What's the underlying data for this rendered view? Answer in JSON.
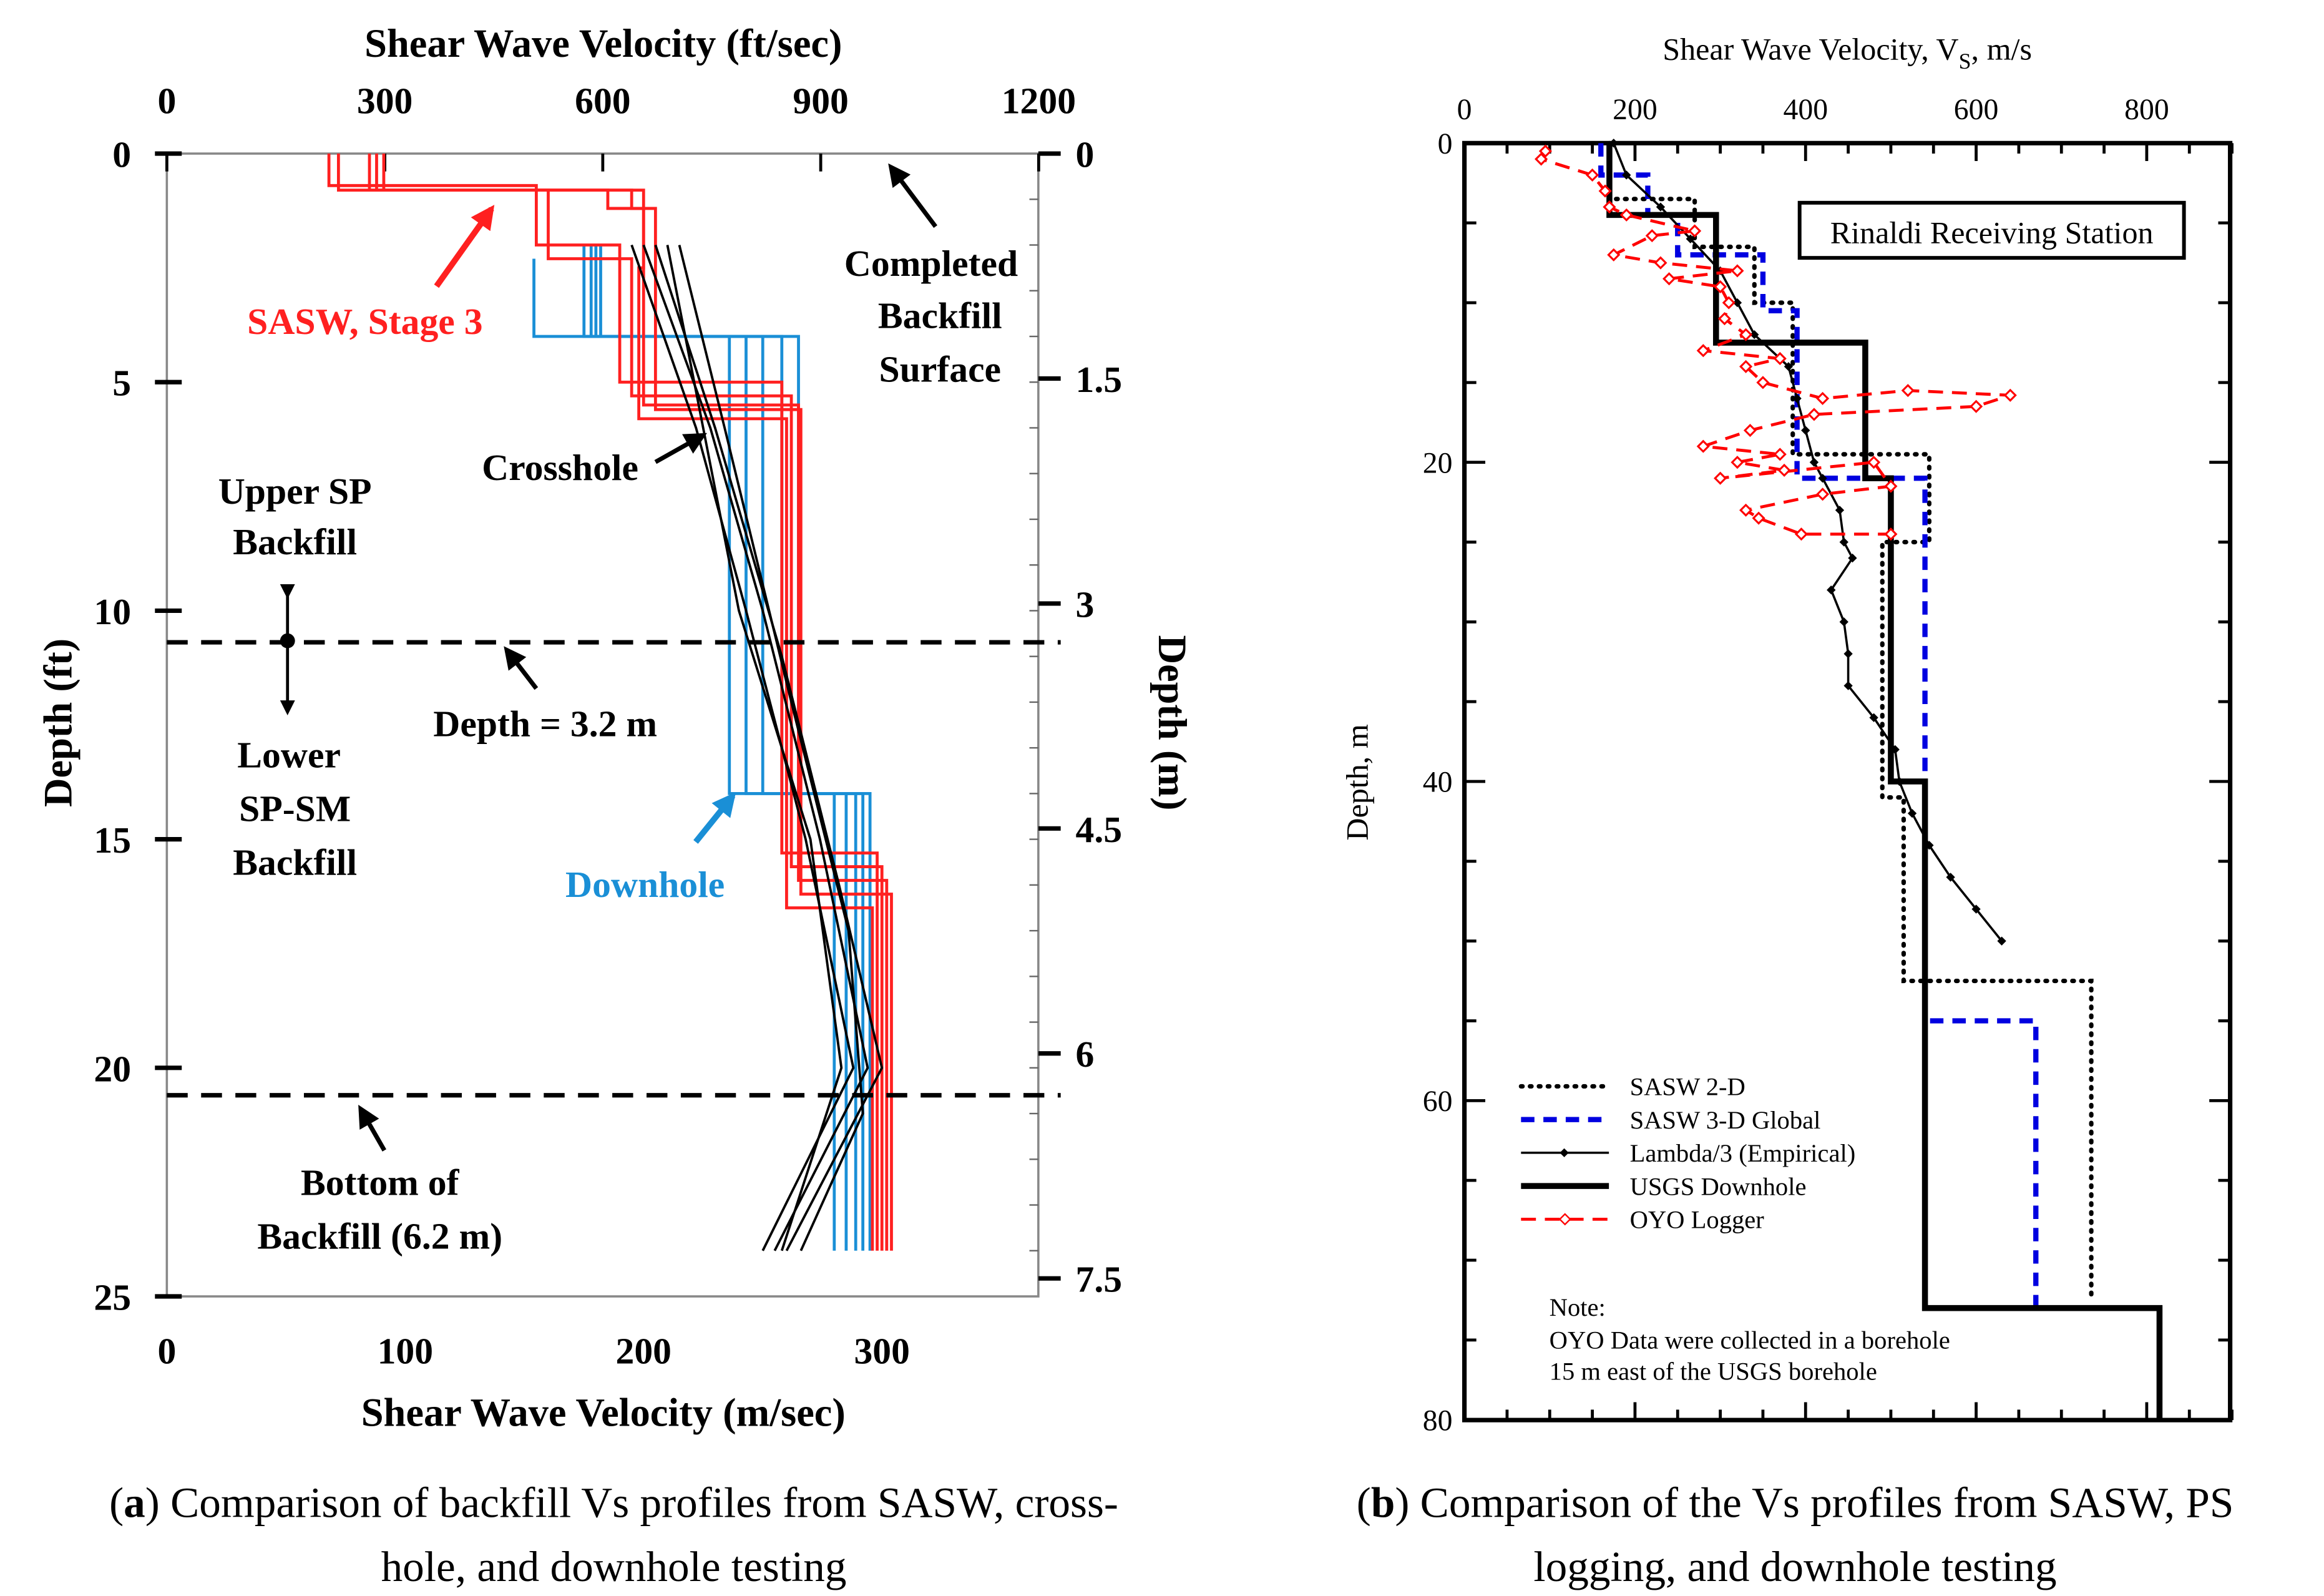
{
  "chart_data": [
    {
      "type": "line",
      "title": "",
      "xlabel_top": "Shear Wave Velocity (ft/sec)",
      "xlabel": "Shear Wave Velocity (m/sec)",
      "ylabel": "Depth (ft)",
      "ylabel_right": "Depth (m)",
      "xlim": [
        0,
        365
      ],
      "ylim": [
        0,
        25
      ],
      "x_ticks": [
        "0",
        "100",
        "200",
        "300"
      ],
      "x_tick_values": [
        0,
        100,
        200,
        300
      ],
      "x_top_ticks": [
        "0",
        "300",
        "600",
        "900",
        "1200"
      ],
      "x_top_tick_values": [
        0,
        300,
        600,
        900,
        1200
      ],
      "y_ticks": [
        "0",
        "5",
        "10",
        "15",
        "20",
        "25"
      ],
      "y_tick_values": [
        0,
        5,
        10,
        15,
        20,
        25
      ],
      "y_right_ticks": [
        "0",
        "1.5",
        "3",
        "4.5",
        "6",
        "7.5"
      ],
      "y_right_tick_values": [
        0,
        1.5,
        3,
        4.5,
        6,
        7.5
      ],
      "colors": {
        "sasw": "#ff2020",
        "downhole": "#1a8fd6",
        "crosshole": "#000000"
      },
      "sasw_profiles": [
        {
          "boundaries": [
            0,
            0.7,
            2.0,
            5.0,
            15.3,
            24
          ],
          "velocities": [
            68,
            155,
            190,
            258,
            298
          ]
        },
        {
          "boundaries": [
            0,
            0.8,
            2.3,
            5.3,
            15.6,
            24
          ],
          "velocities": [
            72,
            160,
            195,
            262,
            300
          ]
        },
        {
          "boundaries": [
            0,
            0.8,
            1.2,
            5.5,
            15.9,
            24
          ],
          "velocities": [
            85,
            185,
            200,
            265,
            302
          ]
        },
        {
          "boundaries": [
            0,
            0.8,
            1.2,
            5.6,
            16.2,
            24
          ],
          "velocities": [
            88,
            195,
            205,
            266,
            304
          ]
        },
        {
          "boundaries": [
            0,
            0.8,
            2.5,
            5.8,
            16.5,
            24
          ],
          "velocities": [
            91,
            200,
            198,
            260,
            296
          ]
        }
      ],
      "downhole_profiles": [
        {
          "boundaries": [
            2.3,
            4.0,
            14.0,
            24
          ],
          "velocities": [
            154,
            236,
            280
          ]
        },
        {
          "boundaries": [
            2.0,
            4.0,
            14.0,
            24
          ],
          "velocities": [
            175,
            243,
            285
          ]
        },
        {
          "boundaries": [
            2.0,
            4.0,
            14.0,
            24
          ],
          "velocities": [
            178,
            250,
            289
          ]
        },
        {
          "boundaries": [
            2.0,
            4.0,
            14.0,
            24
          ],
          "velocities": [
            180,
            258,
            292
          ]
        },
        {
          "boundaries": [
            2.0,
            4.0,
            14.0,
            24
          ],
          "velocities": [
            182,
            265,
            295
          ]
        }
      ],
      "crosshole_profiles": [
        [
          [
            2,
            195
          ],
          [
            6,
            222
          ],
          [
            10,
            243
          ],
          [
            15,
            268
          ],
          [
            20,
            288
          ],
          [
            24,
            250
          ]
        ],
        [
          [
            2,
            200
          ],
          [
            6,
            228
          ],
          [
            10,
            250
          ],
          [
            15,
            274
          ],
          [
            20,
            294
          ],
          [
            24,
            255
          ]
        ],
        [
          [
            2,
            205
          ],
          [
            6,
            230
          ],
          [
            11,
            258
          ],
          [
            16,
            282
          ],
          [
            20,
            300
          ],
          [
            24,
            260
          ]
        ],
        [
          [
            2,
            215
          ],
          [
            6,
            234
          ],
          [
            12,
            262
          ],
          [
            17,
            286
          ],
          [
            21,
            292
          ],
          [
            24,
            266
          ]
        ],
        [
          [
            2,
            210
          ],
          [
            6,
            225
          ],
          [
            10,
            240
          ],
          [
            15,
            270
          ],
          [
            20,
            283
          ],
          [
            24,
            258
          ]
        ]
      ],
      "reference_depths_ft": [
        10.7,
        20.6
      ],
      "annotations": {
        "sasw": "SASW, Stage 3",
        "completed_1": "Completed",
        "completed_2": "Backfill",
        "completed_3": "Surface",
        "crosshole": "Crosshole",
        "upper_1": "Upper SP",
        "upper_2": "Backfill",
        "lower_1": "Lower",
        "lower_2": "SP-SM",
        "lower_3": "Backfill",
        "depth": "Depth = 3.2 m",
        "downhole": "Downhole",
        "bottom_1": "Bottom of",
        "bottom_2": "Backfill (6.2 m)"
      },
      "caption": {
        "label": "a",
        "line1": "Comparison of backfill Vs profiles from SASW, cross-",
        "line2": "hole, and downhole testing"
      }
    },
    {
      "type": "line",
      "title": "",
      "xlabel": "Shear Wave Velocity, V",
      "xlabel_sub": "S",
      "xlabel_unit": ", m/s",
      "ylabel": "Depth, m",
      "xlim": [
        0,
        900
      ],
      "ylim": [
        0,
        80
      ],
      "x_ticks": [
        "0",
        "200",
        "400",
        "600",
        "800"
      ],
      "x_tick_values": [
        0,
        200,
        400,
        600,
        800
      ],
      "y_ticks": [
        "0",
        "20",
        "40",
        "60",
        "80"
      ],
      "y_tick_values": [
        0,
        20,
        40,
        60,
        80
      ],
      "station_label": "Rinaldi Receiving Station",
      "legend_position": "bottom-left",
      "series": [
        {
          "name": "SASW 2-D",
          "color": "#000000",
          "style": "dotted",
          "boundaries": [
            0,
            3.5,
            6.5,
            10,
            19.5,
            25,
            41,
            52.5,
            72.5
          ],
          "velocities": [
            170,
            270,
            340,
            385,
            545,
            490,
            515,
            735
          ]
        },
        {
          "name": "SASW 3-D Global",
          "color": "#0000e0",
          "style": "dashed",
          "boundaries": [
            0,
            2,
            4.5,
            7,
            10.5,
            21,
            55,
            73
          ],
          "velocities": [
            160,
            215,
            250,
            350,
            390,
            540,
            670
          ]
        },
        {
          "name": "Lambda/3 (Empirical)",
          "color": "#000000",
          "style": "solid-marker",
          "points": [
            [
              0,
              175
            ],
            [
              2,
              190
            ],
            [
              4,
              230
            ],
            [
              6,
              265
            ],
            [
              8,
              300
            ],
            [
              10,
              320
            ],
            [
              12,
              340
            ],
            [
              14,
              380
            ],
            [
              16,
              390
            ],
            [
              18,
              400
            ],
            [
              20,
              410
            ],
            [
              21,
              420
            ],
            [
              23,
              440
            ],
            [
              25,
              445
            ],
            [
              26,
              455
            ],
            [
              28,
              430
            ],
            [
              30,
              445
            ],
            [
              32,
              450
            ],
            [
              34,
              450
            ],
            [
              36,
              480
            ],
            [
              38,
              505
            ],
            [
              40,
              510
            ],
            [
              42,
              525
            ],
            [
              44,
              545
            ],
            [
              46,
              570
            ],
            [
              48,
              600
            ],
            [
              50,
              630
            ]
          ]
        },
        {
          "name": "USGS Downhole",
          "color": "#000000",
          "style": "thick",
          "boundaries": [
            0,
            4.5,
            12.5,
            21,
            40,
            73,
            80
          ],
          "velocities": [
            170,
            295,
            470,
            500,
            540,
            815
          ]
        },
        {
          "name": "OYO Logger",
          "color": "#ff0000",
          "style": "dashed-diamond",
          "points": [
            [
              0.5,
              95
            ],
            [
              1,
              90
            ],
            [
              2,
              150
            ],
            [
              3,
              165
            ],
            [
              4,
              170
            ],
            [
              4.5,
              190
            ],
            [
              5.5,
              270
            ],
            [
              5.8,
              220
            ],
            [
              7,
              175
            ],
            [
              7.5,
              230
            ],
            [
              8,
              320
            ],
            [
              8.5,
              240
            ],
            [
              9,
              300
            ],
            [
              10,
              310
            ],
            [
              11,
              305
            ],
            [
              12,
              330
            ],
            [
              13,
              280
            ],
            [
              13.5,
              370
            ],
            [
              14,
              330
            ],
            [
              15,
              350
            ],
            [
              16,
              420
            ],
            [
              15.5,
              520
            ],
            [
              15.8,
              640
            ],
            [
              16.5,
              600
            ],
            [
              17,
              410
            ],
            [
              18,
              335
            ],
            [
              19,
              280
            ],
            [
              19.5,
              370
            ],
            [
              20,
              320
            ],
            [
              20.5,
              375
            ],
            [
              21,
              300
            ],
            [
              20,
              480
            ],
            [
              21.5,
              500
            ],
            [
              22,
              420
            ],
            [
              23,
              330
            ],
            [
              23.5,
              345
            ],
            [
              24.5,
              395
            ],
            [
              24.5,
              500
            ]
          ]
        }
      ],
      "note": {
        "line1": "Note:",
        "line2": "OYO Data were collected in a borehole",
        "line3": "15 m east of the USGS borehole"
      },
      "caption": {
        "label": "b",
        "line1": "Comparison of the Vs profiles from SASW, PS",
        "line2": "logging, and downhole testing"
      }
    }
  ]
}
